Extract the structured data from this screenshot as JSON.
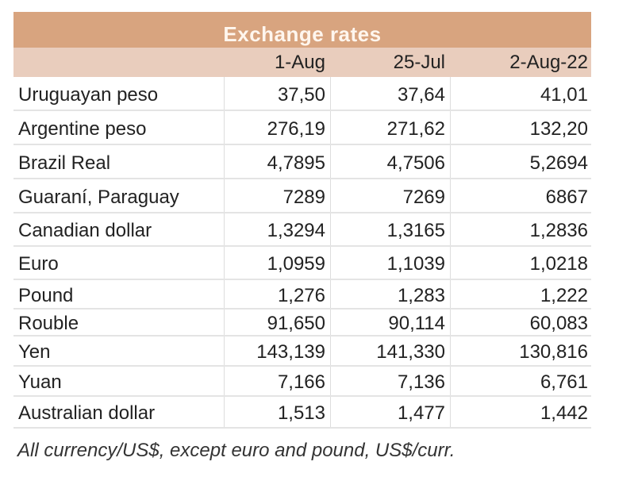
{
  "table": {
    "title": "Exchange rates",
    "headers": [
      "",
      "1-Aug",
      "25-Jul",
      "2-Aug-22"
    ],
    "rows": [
      [
        "Uruguayan peso",
        "37,50",
        "37,64",
        "41,01"
      ],
      [
        "Argentine peso",
        "276,19",
        "271,62",
        "132,20"
      ],
      [
        "Brazil Real",
        "4,7895",
        "4,7506",
        "5,2694"
      ],
      [
        "Guaraní, Paraguay",
        "7289",
        "7269",
        "6867"
      ],
      [
        "Canadian dollar",
        "1,3294",
        "1,3165",
        "1,2836"
      ],
      [
        "Euro",
        "1,0959",
        "1,1039",
        "1,0218"
      ],
      [
        "Pound",
        "1,276",
        "1,283",
        "1,222"
      ],
      [
        "Rouble",
        "91,650",
        "90,114",
        "60,083"
      ],
      [
        "Yen",
        "143,139",
        "141,330",
        "130,816"
      ],
      [
        "Yuan",
        "7,166",
        "7,136",
        "6,761"
      ],
      [
        "Australian dollar",
        "1,513",
        "1,477",
        "1,442"
      ]
    ],
    "footnote": "All currency/US$, except euro and pound, US$/curr.",
    "colors": {
      "title_bg": "#d8a47f",
      "header_bg": "#e9cdbd"
    }
  }
}
